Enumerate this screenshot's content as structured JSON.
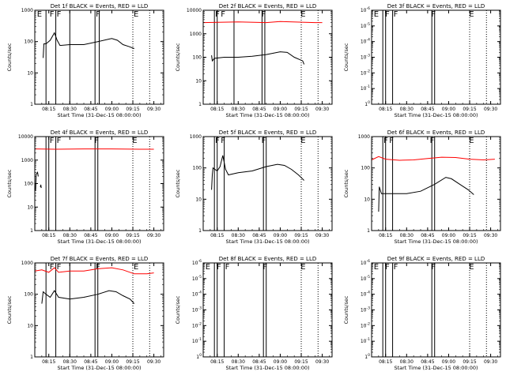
{
  "figure": {
    "x_ticks": [
      "08:15",
      "08:30",
      "08:45",
      "09:00",
      "09:15",
      "09:30"
    ],
    "x_label": "Start Time (31-Dec-15 08:00:00)",
    "y_label": "Counts/sec"
  },
  "chart_data": [
    {
      "type": "line",
      "title": "Det 1f BLACK = Events, RED = LLD",
      "xlabel": "Start Time (31-Dec-15 08:00:00)",
      "ylabel": "Counts/sec",
      "yscale": "log",
      "ylim": [
        1,
        1000
      ],
      "yticks": [
        "1",
        "10",
        "100",
        "1000"
      ],
      "xlim": [
        "08:05",
        "09:37"
      ],
      "x_ticks": [
        "08:15",
        "08:30",
        "08:45",
        "09:00",
        "09:15",
        "09:30"
      ],
      "solid_lines": [
        "08:13",
        "08:20",
        "08:30",
        "08:48",
        "08:51"
      ],
      "dotted_lines": [
        "09:15",
        "09:27"
      ],
      "flags": [
        {
          "label": "E",
          "at": "08:06"
        },
        {
          "label": "F",
          "at": "08:15"
        },
        {
          "label": "F",
          "at": "08:20"
        },
        {
          "label": "F",
          "at": "08:48"
        },
        {
          "label": "E",
          "at": "09:15"
        }
      ],
      "series": [
        {
          "color": "#000000",
          "points": [
            [
              "08:11",
              30
            ],
            [
              "08:11.5",
              85
            ],
            [
              "08:13",
              85
            ],
            [
              "08:16",
              110
            ],
            [
              "08:19",
              190
            ],
            [
              "08:21",
              110
            ],
            [
              "08:23",
              75
            ],
            [
              "08:30",
              80
            ],
            [
              "08:40",
              80
            ],
            [
              "08:50",
              100
            ],
            [
              "08:58",
              120
            ],
            [
              "09:00",
              125
            ],
            [
              "09:04",
              110
            ],
            [
              "09:08",
              80
            ],
            [
              "09:12",
              70
            ],
            [
              "09:16",
              60
            ]
          ]
        }
      ]
    },
    {
      "type": "line",
      "title": "Det 2f BLACK = Events, RED = LLD",
      "xlabel": "Start Time (31-Dec-15 08:00:00)",
      "ylabel": "Counts/sec",
      "yscale": "log",
      "ylim": [
        1,
        10000
      ],
      "yticks": [
        "1",
        "10",
        "100",
        "1000",
        "10000"
      ],
      "xlim": [
        "08:05",
        "09:37"
      ],
      "x_ticks": [
        "08:15",
        "08:30",
        "08:45",
        "09:00",
        "09:15",
        "09:30"
      ],
      "solid_lines": [
        "08:13",
        "08:15",
        "08:27",
        "08:47",
        "08:49"
      ],
      "dotted_lines": [
        "09:15",
        "09:27"
      ],
      "flags": [
        {
          "label": "F",
          "at": "08:13"
        },
        {
          "label": "F",
          "at": "08:17"
        },
        {
          "label": "F",
          "at": "08:46"
        },
        {
          "label": "E",
          "at": "09:14"
        }
      ],
      "series": [
        {
          "color": "#ff0000",
          "points": [
            [
              "08:05",
              3000
            ],
            [
              "08:30",
              3200
            ],
            [
              "08:50",
              3000
            ],
            [
              "09:00",
              3300
            ],
            [
              "09:25",
              3000
            ],
            [
              "09:30",
              3000
            ]
          ]
        },
        {
          "color": "#000000",
          "points": [
            [
              "08:11",
              120
            ],
            [
              "08:11.5",
              70
            ],
            [
              "08:13",
              90
            ],
            [
              "08:20",
              100
            ],
            [
              "08:30",
              100
            ],
            [
              "08:40",
              110
            ],
            [
              "08:50",
              130
            ],
            [
              "09:00",
              170
            ],
            [
              "09:05",
              160
            ],
            [
              "09:10",
              100
            ],
            [
              "09:16",
              70
            ],
            [
              "09:17",
              50
            ]
          ]
        }
      ]
    },
    {
      "type": "line",
      "title": "Det 3f BLACK = Events, RED = LLD",
      "xlabel": "Start Time (31-Dec-15 08:00:00)",
      "ylabel": "Counts/sec",
      "yscale": "log",
      "ylim": [
        1,
        1e-06
      ],
      "yticks": [
        "1",
        "10",
        "10",
        "10",
        "10",
        "10",
        "10"
      ],
      "ytick_exponents": [
        "0",
        "-1",
        "-2",
        "-3",
        "-4",
        "-5",
        "-6"
      ],
      "xlim": [
        "08:05",
        "09:37"
      ],
      "x_ticks": [
        "08:15",
        "08:30",
        "08:45",
        "09:00",
        "09:15",
        "09:30"
      ],
      "solid_lines": [
        "08:13",
        "08:15",
        "08:20",
        "08:48",
        "08:50"
      ],
      "dotted_lines": [
        "09:15",
        "09:27"
      ],
      "flags": [
        {
          "label": "E",
          "at": "08:06"
        },
        {
          "label": "F",
          "at": "08:14"
        },
        {
          "label": "F",
          "at": "08:20"
        },
        {
          "label": "F",
          "at": "08:47"
        },
        {
          "label": "E",
          "at": "09:14"
        }
      ],
      "series": []
    },
    {
      "type": "line",
      "title": "Det 4f BLACK = Events, RED = LLD",
      "xlabel": "Start Time (31-Dec-15 08:00:00)",
      "ylabel": "Counts/sec",
      "yscale": "log",
      "ylim": [
        1,
        10000
      ],
      "yticks": [
        "1",
        "10",
        "100",
        "1000",
        "10000"
      ],
      "xlim": [
        "08:05",
        "09:37"
      ],
      "x_ticks": [
        "08:15",
        "08:30",
        "08:45",
        "09:00",
        "09:15",
        "09:30"
      ],
      "solid_lines": [
        "08:13",
        "08:15",
        "08:20",
        "08:48",
        "08:50"
      ],
      "dotted_lines": [
        "09:15",
        "09:27"
      ],
      "flags": [
        {
          "label": "F",
          "at": "08:15"
        },
        {
          "label": "F",
          "at": "08:20"
        },
        {
          "label": "F",
          "at": "08:47"
        },
        {
          "label": "E",
          "at": "09:14"
        }
      ],
      "series": [
        {
          "color": "#ff0000",
          "points": [
            [
              "08:05",
              3000
            ],
            [
              "08:20",
              2900
            ],
            [
              "08:40",
              3000
            ],
            [
              "09:00",
              3000
            ],
            [
              "09:20",
              2900
            ],
            [
              "09:30",
              2900
            ]
          ]
        },
        {
          "color": "#000000",
          "points": [
            [
              "08:05.5",
              50
            ],
            [
              "08:06",
              250
            ],
            [
              "08:07",
              300
            ],
            [
              "08:07.5",
              200
            ]
          ]
        },
        {
          "color": "#000000",
          "points": [
            [
              "08:09",
              70
            ],
            [
              "08:09.3",
              90
            ],
            [
              "08:09.6",
              65
            ]
          ]
        }
      ]
    },
    {
      "type": "line",
      "title": "Det 5f BLACK = Events, RED = LLD",
      "xlabel": "Start Time (31-Dec-15 08:00:00)",
      "ylabel": "Counts/sec",
      "yscale": "log",
      "ylim": [
        1,
        1000
      ],
      "yticks": [
        "1",
        "10",
        "100",
        "1000"
      ],
      "xlim": [
        "08:05",
        "09:37"
      ],
      "x_ticks": [
        "08:15",
        "08:30",
        "08:45",
        "09:00",
        "09:15",
        "09:30"
      ],
      "solid_lines": [
        "08:13",
        "08:15",
        "08:20",
        "08:48",
        "08:50"
      ],
      "dotted_lines": [
        "09:15",
        "09:27"
      ],
      "flags": [
        {
          "label": "F",
          "at": "08:13"
        },
        {
          "label": "F",
          "at": "08:17"
        },
        {
          "label": "F",
          "at": "08:46"
        },
        {
          "label": "E",
          "at": "09:14"
        }
      ],
      "series": [
        {
          "color": "#000000",
          "points": [
            [
              "08:11",
              20
            ],
            [
              "08:11.5",
              60
            ],
            [
              "08:12",
              100
            ],
            [
              "08:15",
              80
            ],
            [
              "08:17",
              110
            ],
            [
              "08:19",
              250
            ],
            [
              "08:21",
              90
            ],
            [
              "08:23",
              60
            ],
            [
              "08:30",
              70
            ],
            [
              "08:40",
              80
            ],
            [
              "08:50",
              110
            ],
            [
              "08:58",
              130
            ],
            [
              "09:03",
              120
            ],
            [
              "09:08",
              90
            ],
            [
              "09:13",
              60
            ],
            [
              "09:17",
              40
            ]
          ]
        }
      ]
    },
    {
      "type": "line",
      "title": "Det 6f BLACK = Events, RED = LLD",
      "xlabel": "Start Time (31-Dec-15 08:00:00)",
      "ylabel": "Counts/sec",
      "yscale": "log",
      "ylim": [
        1,
        1000
      ],
      "yticks": [
        "1",
        "10",
        "100",
        "1000"
      ],
      "xlim": [
        "08:05",
        "09:37"
      ],
      "x_ticks": [
        "08:15",
        "08:30",
        "08:45",
        "09:00",
        "09:15",
        "09:30"
      ],
      "solid_lines": [
        "08:13",
        "08:15",
        "08:20",
        "08:48",
        "08:50"
      ],
      "dotted_lines": [
        "09:15",
        "09:27"
      ],
      "flags": [
        {
          "label": "F",
          "at": "08:13"
        },
        {
          "label": "F",
          "at": "08:17"
        },
        {
          "label": "F",
          "at": "08:46"
        },
        {
          "label": "E",
          "at": "09:14"
        }
      ],
      "series": [
        {
          "color": "#ff0000",
          "points": [
            [
              "08:05",
              180
            ],
            [
              "08:10",
              230
            ],
            [
              "08:15",
              190
            ],
            [
              "08:25",
              175
            ],
            [
              "08:35",
              180
            ],
            [
              "08:45",
              200
            ],
            [
              "08:55",
              220
            ],
            [
              "09:05",
              215
            ],
            [
              "09:15",
              190
            ],
            [
              "09:25",
              180
            ],
            [
              "09:33",
              190
            ]
          ]
        },
        {
          "color": "#000000",
          "points": [
            [
              "08:10",
              4
            ],
            [
              "08:10.5",
              25
            ],
            [
              "08:12",
              15
            ],
            [
              "08:20",
              15
            ],
            [
              "08:30",
              15
            ],
            [
              "08:40",
              18
            ],
            [
              "08:50",
              30
            ],
            [
              "08:58",
              50
            ],
            [
              "09:02",
              45
            ],
            [
              "09:08",
              30
            ],
            [
              "09:14",
              20
            ],
            [
              "09:18",
              14
            ]
          ]
        }
      ]
    },
    {
      "type": "line",
      "title": "Det 7f BLACK = Events, RED = LLD",
      "xlabel": "Start Time (31-Dec-15 08:00:00)",
      "ylabel": "Counts/sec",
      "yscale": "log",
      "ylim": [
        1,
        1000
      ],
      "yticks": [
        "1",
        "10",
        "100",
        "1000"
      ],
      "xlim": [
        "08:05",
        "09:37"
      ],
      "x_ticks": [
        "08:15",
        "08:30",
        "08:45",
        "09:00",
        "09:15",
        "09:30"
      ],
      "solid_lines": [
        "08:13",
        "08:20",
        "08:30",
        "08:48",
        "08:50"
      ],
      "dotted_lines": [
        "09:15",
        "09:27"
      ],
      "flags": [
        {
          "label": "F",
          "at": "08:15"
        },
        {
          "label": "F",
          "at": "08:20"
        },
        {
          "label": "F",
          "at": "08:48"
        },
        {
          "label": "E",
          "at": "09:15"
        }
      ],
      "series": [
        {
          "color": "#ff0000",
          "points": [
            [
              "08:05",
              550
            ],
            [
              "08:10",
              600
            ],
            [
              "08:15",
              500
            ],
            [
              "08:19",
              700
            ],
            [
              "08:22",
              500
            ],
            [
              "08:30",
              550
            ],
            [
              "08:40",
              550
            ],
            [
              "08:50",
              650
            ],
            [
              "09:00",
              700
            ],
            [
              "09:08",
              600
            ],
            [
              "09:16",
              450
            ],
            [
              "09:25",
              450
            ],
            [
              "09:30",
              480
            ]
          ]
        },
        {
          "color": "#000000",
          "points": [
            [
              "08:10",
              50
            ],
            [
              "08:11",
              120
            ],
            [
              "08:13",
              100
            ],
            [
              "08:16",
              80
            ],
            [
              "08:19",
              130
            ],
            [
              "08:22",
              80
            ],
            [
              "08:30",
              70
            ],
            [
              "08:40",
              80
            ],
            [
              "08:50",
              100
            ],
            [
              "08:58",
              130
            ],
            [
              "09:03",
              120
            ],
            [
              "09:08",
              90
            ],
            [
              "09:13",
              70
            ],
            [
              "09:16",
              50
            ]
          ]
        }
      ]
    },
    {
      "type": "line",
      "title": "Det 8f BLACK = Events, RED = LLD",
      "xlabel": "Start Time (31-Dec-15 08:00:00)",
      "ylabel": "Counts/sec",
      "yscale": "log",
      "ylim": [
        1,
        1e-06
      ],
      "yticks": [
        "1",
        "10",
        "10",
        "10",
        "10",
        "10",
        "10"
      ],
      "ytick_exponents": [
        "0",
        "-1",
        "-2",
        "-3",
        "-4",
        "-5",
        "-6"
      ],
      "xlim": [
        "08:05",
        "09:37"
      ],
      "x_ticks": [
        "08:15",
        "08:30",
        "08:45",
        "09:00",
        "09:15",
        "09:30"
      ],
      "solid_lines": [
        "08:13",
        "08:15",
        "08:20",
        "08:48",
        "08:50"
      ],
      "dotted_lines": [
        "09:15",
        "09:27"
      ],
      "flags": [
        {
          "label": "E",
          "at": "08:06"
        },
        {
          "label": "F",
          "at": "08:14"
        },
        {
          "label": "F",
          "at": "08:20"
        },
        {
          "label": "F",
          "at": "08:47"
        },
        {
          "label": "E",
          "at": "09:14"
        }
      ],
      "series": []
    },
    {
      "type": "line",
      "title": "Det 9f BLACK = Events, RED = LLD",
      "xlabel": "Start Time (31-Dec-15 08:00:00)",
      "ylabel": "Counts/sec",
      "yscale": "log",
      "ylim": [
        1,
        1e-06
      ],
      "yticks": [
        "1",
        "10",
        "10",
        "10",
        "10",
        "10",
        "10"
      ],
      "ytick_exponents": [
        "0",
        "-1",
        "-2",
        "-3",
        "-4",
        "-5",
        "-6"
      ],
      "xlim": [
        "08:05",
        "09:37"
      ],
      "x_ticks": [
        "08:15",
        "08:30",
        "08:45",
        "09:00",
        "09:15",
        "09:30"
      ],
      "solid_lines": [
        "08:13",
        "08:15",
        "08:20",
        "08:48",
        "08:50"
      ],
      "dotted_lines": [
        "09:15",
        "09:27"
      ],
      "flags": [
        {
          "label": "E",
          "at": "08:06"
        },
        {
          "label": "F",
          "at": "08:14"
        },
        {
          "label": "F",
          "at": "08:20"
        },
        {
          "label": "F",
          "at": "08:47"
        },
        {
          "label": "E",
          "at": "09:14"
        }
      ],
      "series": []
    }
  ]
}
